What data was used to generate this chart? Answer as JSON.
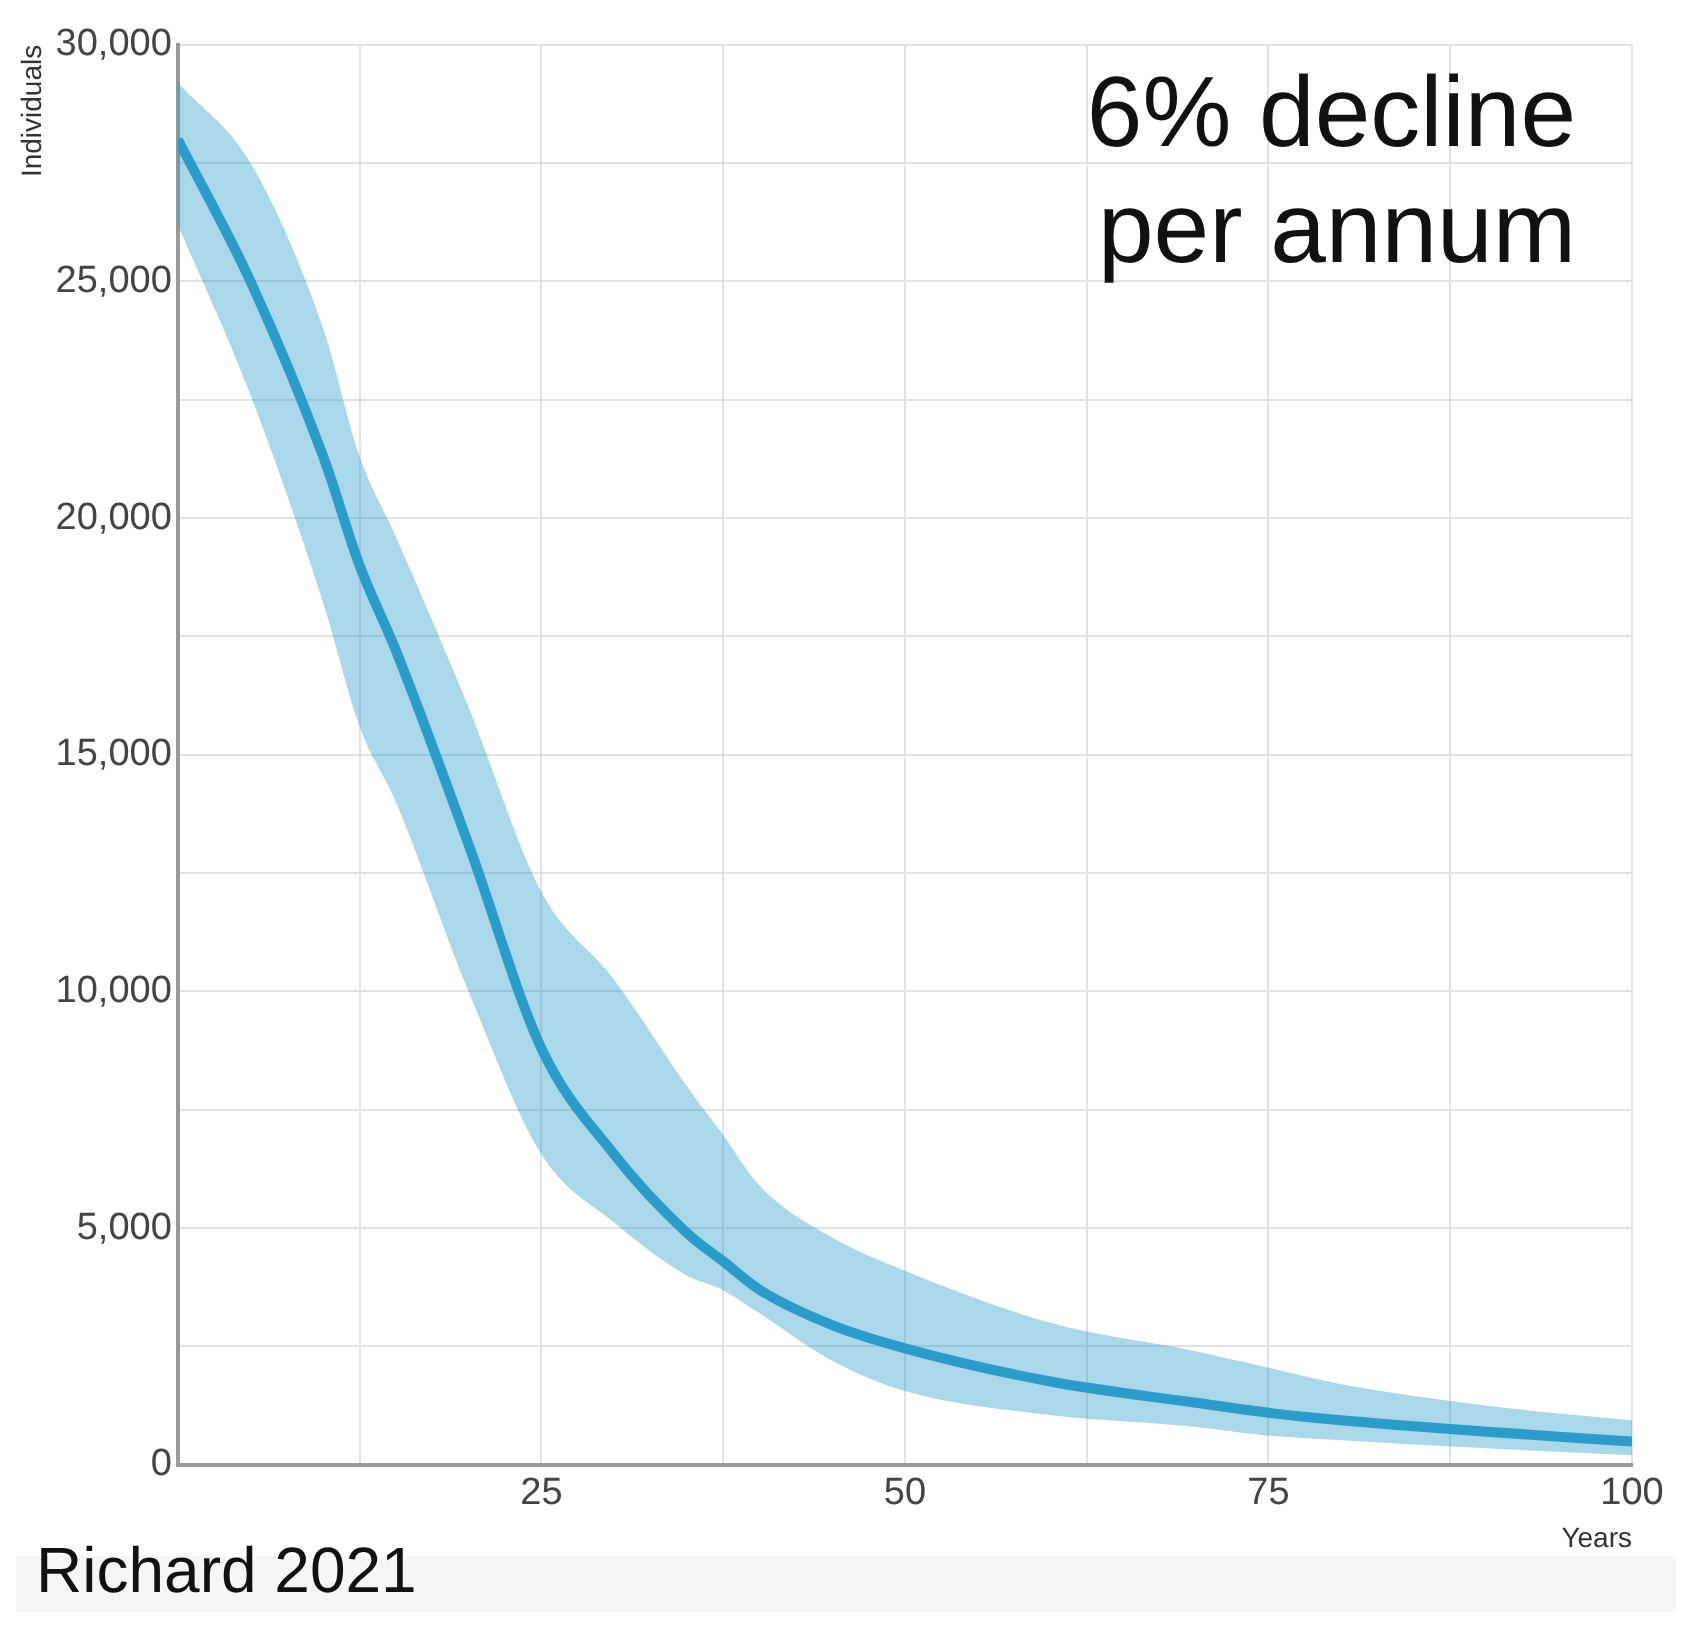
{
  "chart_data": {
    "type": "line",
    "ylabel": "Individuals",
    "xlabel": "Years",
    "x": [
      0,
      5,
      10,
      12.5,
      15,
      20,
      25,
      30,
      35,
      37.5,
      40,
      45,
      50,
      60,
      70,
      75,
      80,
      90,
      100
    ],
    "series": [
      {
        "color": "#2b9bc9",
        "values": [
          28000,
          25000,
          21300,
          19000,
          17200,
          13100,
          8800,
          6560,
          4900,
          4300,
          3700,
          2950,
          2460,
          1760,
          1310,
          1100,
          940,
          700,
          490
        ],
        "lower": [
          26200,
          22600,
          18200,
          15600,
          14000,
          10000,
          6560,
          5120,
          4000,
          3690,
          3200,
          2200,
          1560,
          1050,
          800,
          615,
          520,
          350,
          200
        ],
        "upper": [
          29200,
          27500,
          24000,
          21300,
          19600,
          16000,
          12100,
          10250,
          8000,
          6970,
          5900,
          4800,
          4100,
          3000,
          2400,
          2050,
          1700,
          1250,
          940
        ]
      }
    ],
    "xlim": [
      0,
      100
    ],
    "ylim": [
      0,
      30000
    ],
    "xticks": [
      {
        "value": 0,
        "label": null
      },
      {
        "value": 12.5,
        "label": null
      },
      25,
      {
        "value": 37.5,
        "label": null
      },
      50,
      {
        "value": 62.5,
        "label": null
      },
      75,
      {
        "value": 87.5,
        "label": null
      },
      100
    ],
    "yticks": [
      0,
      {
        "value": 2500,
        "label": null
      },
      {
        "value": 5000,
        "label": "5,000"
      },
      {
        "value": 7500,
        "label": null
      },
      {
        "value": 10000,
        "label": "10,000"
      },
      {
        "value": 12500,
        "label": null
      },
      {
        "value": 15000,
        "label": "15,000"
      },
      {
        "value": 17500,
        "label": null
      },
      {
        "value": 20000,
        "label": "20,000"
      },
      {
        "value": 22500,
        "label": null
      },
      {
        "value": 25000,
        "label": "25,000"
      },
      {
        "value": 27500,
        "label": null
      },
      {
        "value": 30000,
        "label": "30,000"
      }
    ],
    "grid": true,
    "legend": false,
    "marker": "none",
    "line_style": "solid",
    "annotations": [
      "6% decline\nper annum",
      "Richard 2021"
    ]
  }
}
